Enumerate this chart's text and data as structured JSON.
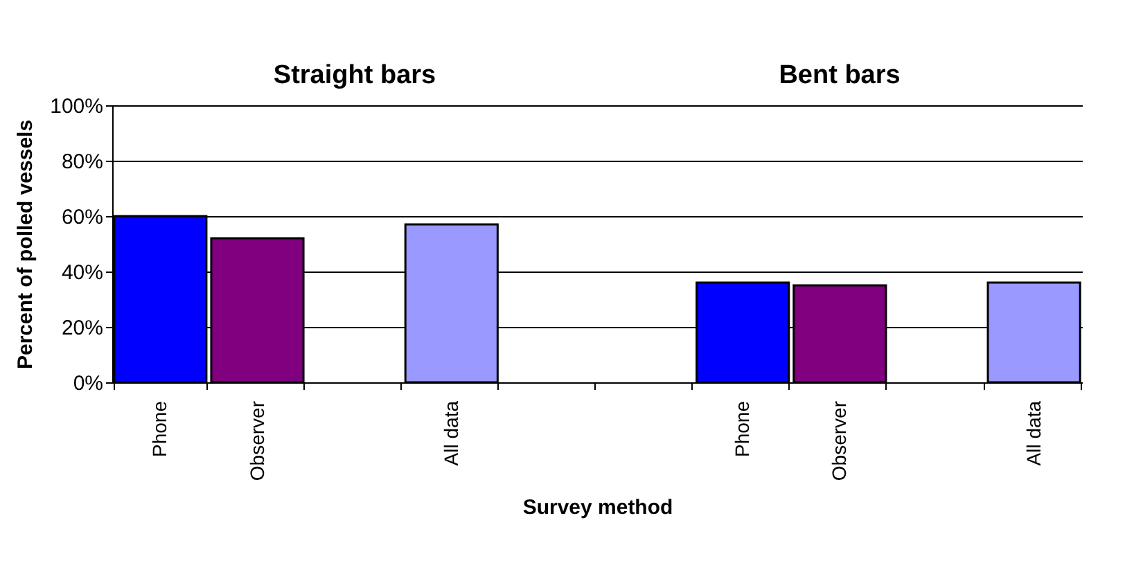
{
  "chart_data": {
    "type": "bar",
    "ylabel": "Percent of polled vessels",
    "xlabel": "Survey method",
    "annotations": [
      "Straight bars",
      "Bent bars"
    ],
    "categories": [
      "Phone",
      "Observer",
      null,
      "All data",
      null,
      null,
      "Phone",
      "Observer",
      null,
      "All data"
    ],
    "values": [
      60,
      52,
      null,
      57,
      null,
      null,
      36,
      35,
      null,
      36
    ],
    "colors": [
      "#0000ff",
      "#800080",
      null,
      "#9999ff",
      null,
      null,
      "#0000ff",
      "#800080",
      null,
      "#9999ff"
    ],
    "ylim": [
      0,
      100
    ],
    "yticks": [
      {
        "value": 0,
        "label": "0%"
      },
      {
        "value": 20,
        "label": "20%"
      },
      {
        "value": 40,
        "label": "40%"
      },
      {
        "value": 60,
        "label": "60%"
      },
      {
        "value": 80,
        "label": "80%"
      },
      {
        "value": 100,
        "label": "100%"
      }
    ],
    "grid": "y",
    "legend": false
  }
}
